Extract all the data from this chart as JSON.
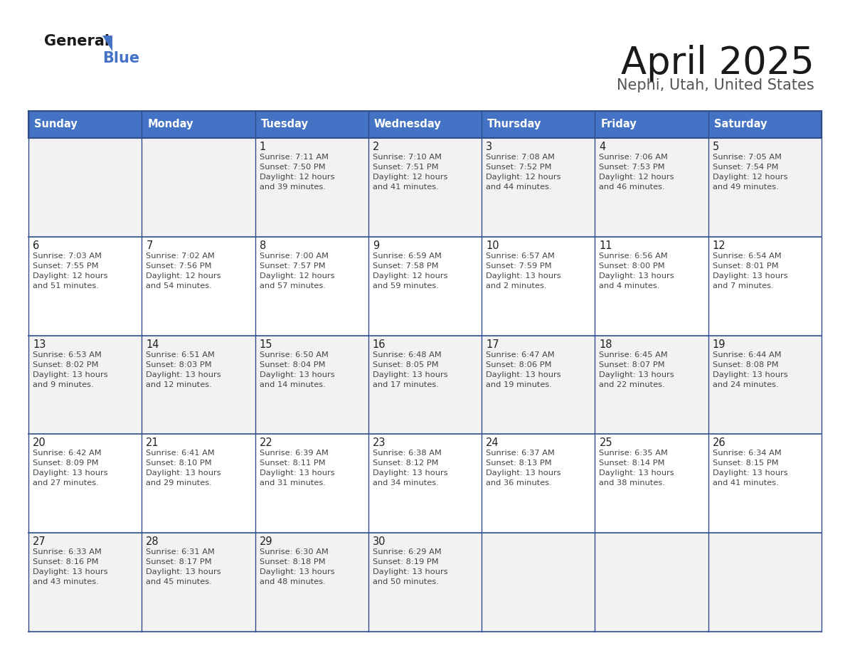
{
  "title": "April 2025",
  "subtitle": "Nephi, Utah, United States",
  "header_bg": "#4472C4",
  "header_text_color": "#FFFFFF",
  "row_bg_light": "#F2F2F2",
  "row_bg_white": "#FFFFFF",
  "border_color": "#2E4D8A",
  "text_color_dark": "#222222",
  "text_color_body": "#444444",
  "days_of_week": [
    "Sunday",
    "Monday",
    "Tuesday",
    "Wednesday",
    "Thursday",
    "Friday",
    "Saturday"
  ],
  "calendar": [
    [
      {
        "day": "",
        "sunrise": "",
        "sunset": "",
        "daylight": ""
      },
      {
        "day": "",
        "sunrise": "",
        "sunset": "",
        "daylight": ""
      },
      {
        "day": "1",
        "sunrise": "Sunrise: 7:11 AM",
        "sunset": "Sunset: 7:50 PM",
        "daylight": "Daylight: 12 hours\nand 39 minutes."
      },
      {
        "day": "2",
        "sunrise": "Sunrise: 7:10 AM",
        "sunset": "Sunset: 7:51 PM",
        "daylight": "Daylight: 12 hours\nand 41 minutes."
      },
      {
        "day": "3",
        "sunrise": "Sunrise: 7:08 AM",
        "sunset": "Sunset: 7:52 PM",
        "daylight": "Daylight: 12 hours\nand 44 minutes."
      },
      {
        "day": "4",
        "sunrise": "Sunrise: 7:06 AM",
        "sunset": "Sunset: 7:53 PM",
        "daylight": "Daylight: 12 hours\nand 46 minutes."
      },
      {
        "day": "5",
        "sunrise": "Sunrise: 7:05 AM",
        "sunset": "Sunset: 7:54 PM",
        "daylight": "Daylight: 12 hours\nand 49 minutes."
      }
    ],
    [
      {
        "day": "6",
        "sunrise": "Sunrise: 7:03 AM",
        "sunset": "Sunset: 7:55 PM",
        "daylight": "Daylight: 12 hours\nand 51 minutes."
      },
      {
        "day": "7",
        "sunrise": "Sunrise: 7:02 AM",
        "sunset": "Sunset: 7:56 PM",
        "daylight": "Daylight: 12 hours\nand 54 minutes."
      },
      {
        "day": "8",
        "sunrise": "Sunrise: 7:00 AM",
        "sunset": "Sunset: 7:57 PM",
        "daylight": "Daylight: 12 hours\nand 57 minutes."
      },
      {
        "day": "9",
        "sunrise": "Sunrise: 6:59 AM",
        "sunset": "Sunset: 7:58 PM",
        "daylight": "Daylight: 12 hours\nand 59 minutes."
      },
      {
        "day": "10",
        "sunrise": "Sunrise: 6:57 AM",
        "sunset": "Sunset: 7:59 PM",
        "daylight": "Daylight: 13 hours\nand 2 minutes."
      },
      {
        "day": "11",
        "sunrise": "Sunrise: 6:56 AM",
        "sunset": "Sunset: 8:00 PM",
        "daylight": "Daylight: 13 hours\nand 4 minutes."
      },
      {
        "day": "12",
        "sunrise": "Sunrise: 6:54 AM",
        "sunset": "Sunset: 8:01 PM",
        "daylight": "Daylight: 13 hours\nand 7 minutes."
      }
    ],
    [
      {
        "day": "13",
        "sunrise": "Sunrise: 6:53 AM",
        "sunset": "Sunset: 8:02 PM",
        "daylight": "Daylight: 13 hours\nand 9 minutes."
      },
      {
        "day": "14",
        "sunrise": "Sunrise: 6:51 AM",
        "sunset": "Sunset: 8:03 PM",
        "daylight": "Daylight: 13 hours\nand 12 minutes."
      },
      {
        "day": "15",
        "sunrise": "Sunrise: 6:50 AM",
        "sunset": "Sunset: 8:04 PM",
        "daylight": "Daylight: 13 hours\nand 14 minutes."
      },
      {
        "day": "16",
        "sunrise": "Sunrise: 6:48 AM",
        "sunset": "Sunset: 8:05 PM",
        "daylight": "Daylight: 13 hours\nand 17 minutes."
      },
      {
        "day": "17",
        "sunrise": "Sunrise: 6:47 AM",
        "sunset": "Sunset: 8:06 PM",
        "daylight": "Daylight: 13 hours\nand 19 minutes."
      },
      {
        "day": "18",
        "sunrise": "Sunrise: 6:45 AM",
        "sunset": "Sunset: 8:07 PM",
        "daylight": "Daylight: 13 hours\nand 22 minutes."
      },
      {
        "day": "19",
        "sunrise": "Sunrise: 6:44 AM",
        "sunset": "Sunset: 8:08 PM",
        "daylight": "Daylight: 13 hours\nand 24 minutes."
      }
    ],
    [
      {
        "day": "20",
        "sunrise": "Sunrise: 6:42 AM",
        "sunset": "Sunset: 8:09 PM",
        "daylight": "Daylight: 13 hours\nand 27 minutes."
      },
      {
        "day": "21",
        "sunrise": "Sunrise: 6:41 AM",
        "sunset": "Sunset: 8:10 PM",
        "daylight": "Daylight: 13 hours\nand 29 minutes."
      },
      {
        "day": "22",
        "sunrise": "Sunrise: 6:39 AM",
        "sunset": "Sunset: 8:11 PM",
        "daylight": "Daylight: 13 hours\nand 31 minutes."
      },
      {
        "day": "23",
        "sunrise": "Sunrise: 6:38 AM",
        "sunset": "Sunset: 8:12 PM",
        "daylight": "Daylight: 13 hours\nand 34 minutes."
      },
      {
        "day": "24",
        "sunrise": "Sunrise: 6:37 AM",
        "sunset": "Sunset: 8:13 PM",
        "daylight": "Daylight: 13 hours\nand 36 minutes."
      },
      {
        "day": "25",
        "sunrise": "Sunrise: 6:35 AM",
        "sunset": "Sunset: 8:14 PM",
        "daylight": "Daylight: 13 hours\nand 38 minutes."
      },
      {
        "day": "26",
        "sunrise": "Sunrise: 6:34 AM",
        "sunset": "Sunset: 8:15 PM",
        "daylight": "Daylight: 13 hours\nand 41 minutes."
      }
    ],
    [
      {
        "day": "27",
        "sunrise": "Sunrise: 6:33 AM",
        "sunset": "Sunset: 8:16 PM",
        "daylight": "Daylight: 13 hours\nand 43 minutes."
      },
      {
        "day": "28",
        "sunrise": "Sunrise: 6:31 AM",
        "sunset": "Sunset: 8:17 PM",
        "daylight": "Daylight: 13 hours\nand 45 minutes."
      },
      {
        "day": "29",
        "sunrise": "Sunrise: 6:30 AM",
        "sunset": "Sunset: 8:18 PM",
        "daylight": "Daylight: 13 hours\nand 48 minutes."
      },
      {
        "day": "30",
        "sunrise": "Sunrise: 6:29 AM",
        "sunset": "Sunset: 8:19 PM",
        "daylight": "Daylight: 13 hours\nand 50 minutes."
      },
      {
        "day": "",
        "sunrise": "",
        "sunset": "",
        "daylight": ""
      },
      {
        "day": "",
        "sunrise": "",
        "sunset": "",
        "daylight": ""
      },
      {
        "day": "",
        "sunrise": "",
        "sunset": "",
        "daylight": ""
      }
    ]
  ]
}
